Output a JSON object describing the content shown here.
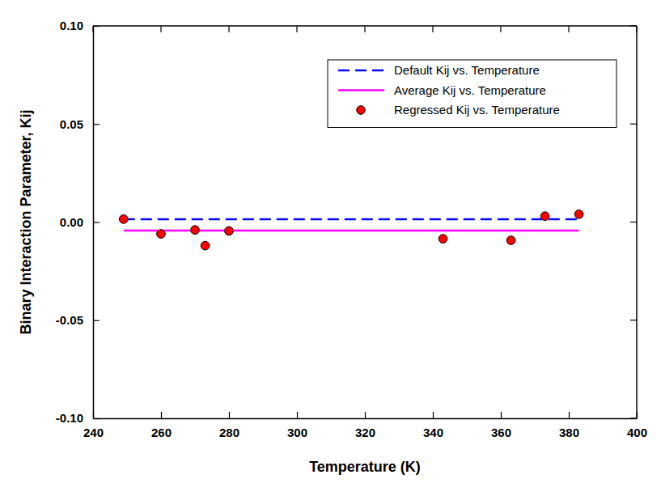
{
  "chart_data": {
    "type": "line",
    "x_label": "Temperature (K)",
    "y_label": "Binary Interaction Parameter, Kij",
    "xlim": [
      240,
      400
    ],
    "xticks": [
      240,
      260,
      280,
      300,
      320,
      340,
      360,
      380,
      400
    ],
    "ylim": [
      -0.1,
      0.1
    ],
    "yticks": [
      {
        "value": -0.1,
        "label": "-0.10"
      },
      {
        "value": -0.05,
        "label": "-0.05"
      },
      {
        "value": 0,
        "label": "0.00"
      },
      {
        "value": 0.05,
        "label": "0.05"
      },
      {
        "value": 0.1,
        "label": "0.10"
      }
    ],
    "grid": false,
    "legend": "upper right",
    "series": [
      {
        "name": "Default Kij vs. Temperature",
        "type": "line",
        "color": "#0000ff",
        "line_style": "dashed",
        "x": [
          249,
          383
        ],
        "values": [
          0.0014,
          0.0014
        ]
      },
      {
        "name": "Average Kij vs. Temperature",
        "type": "line",
        "color": "#ff00ff",
        "line_style": "solid",
        "x": [
          249,
          383
        ],
        "values": [
          -0.0043,
          -0.0043
        ]
      },
      {
        "name": "Regressed Kij vs. Temperature",
        "type": "scatter",
        "color": "#ff0000",
        "marker": "circle",
        "x": [
          249,
          260,
          270,
          273,
          280,
          343,
          363,
          373,
          383
        ],
        "values": [
          0.0015,
          -0.006,
          -0.004,
          -0.012,
          -0.0045,
          -0.0085,
          -0.0093,
          0.003,
          0.004
        ]
      }
    ]
  }
}
